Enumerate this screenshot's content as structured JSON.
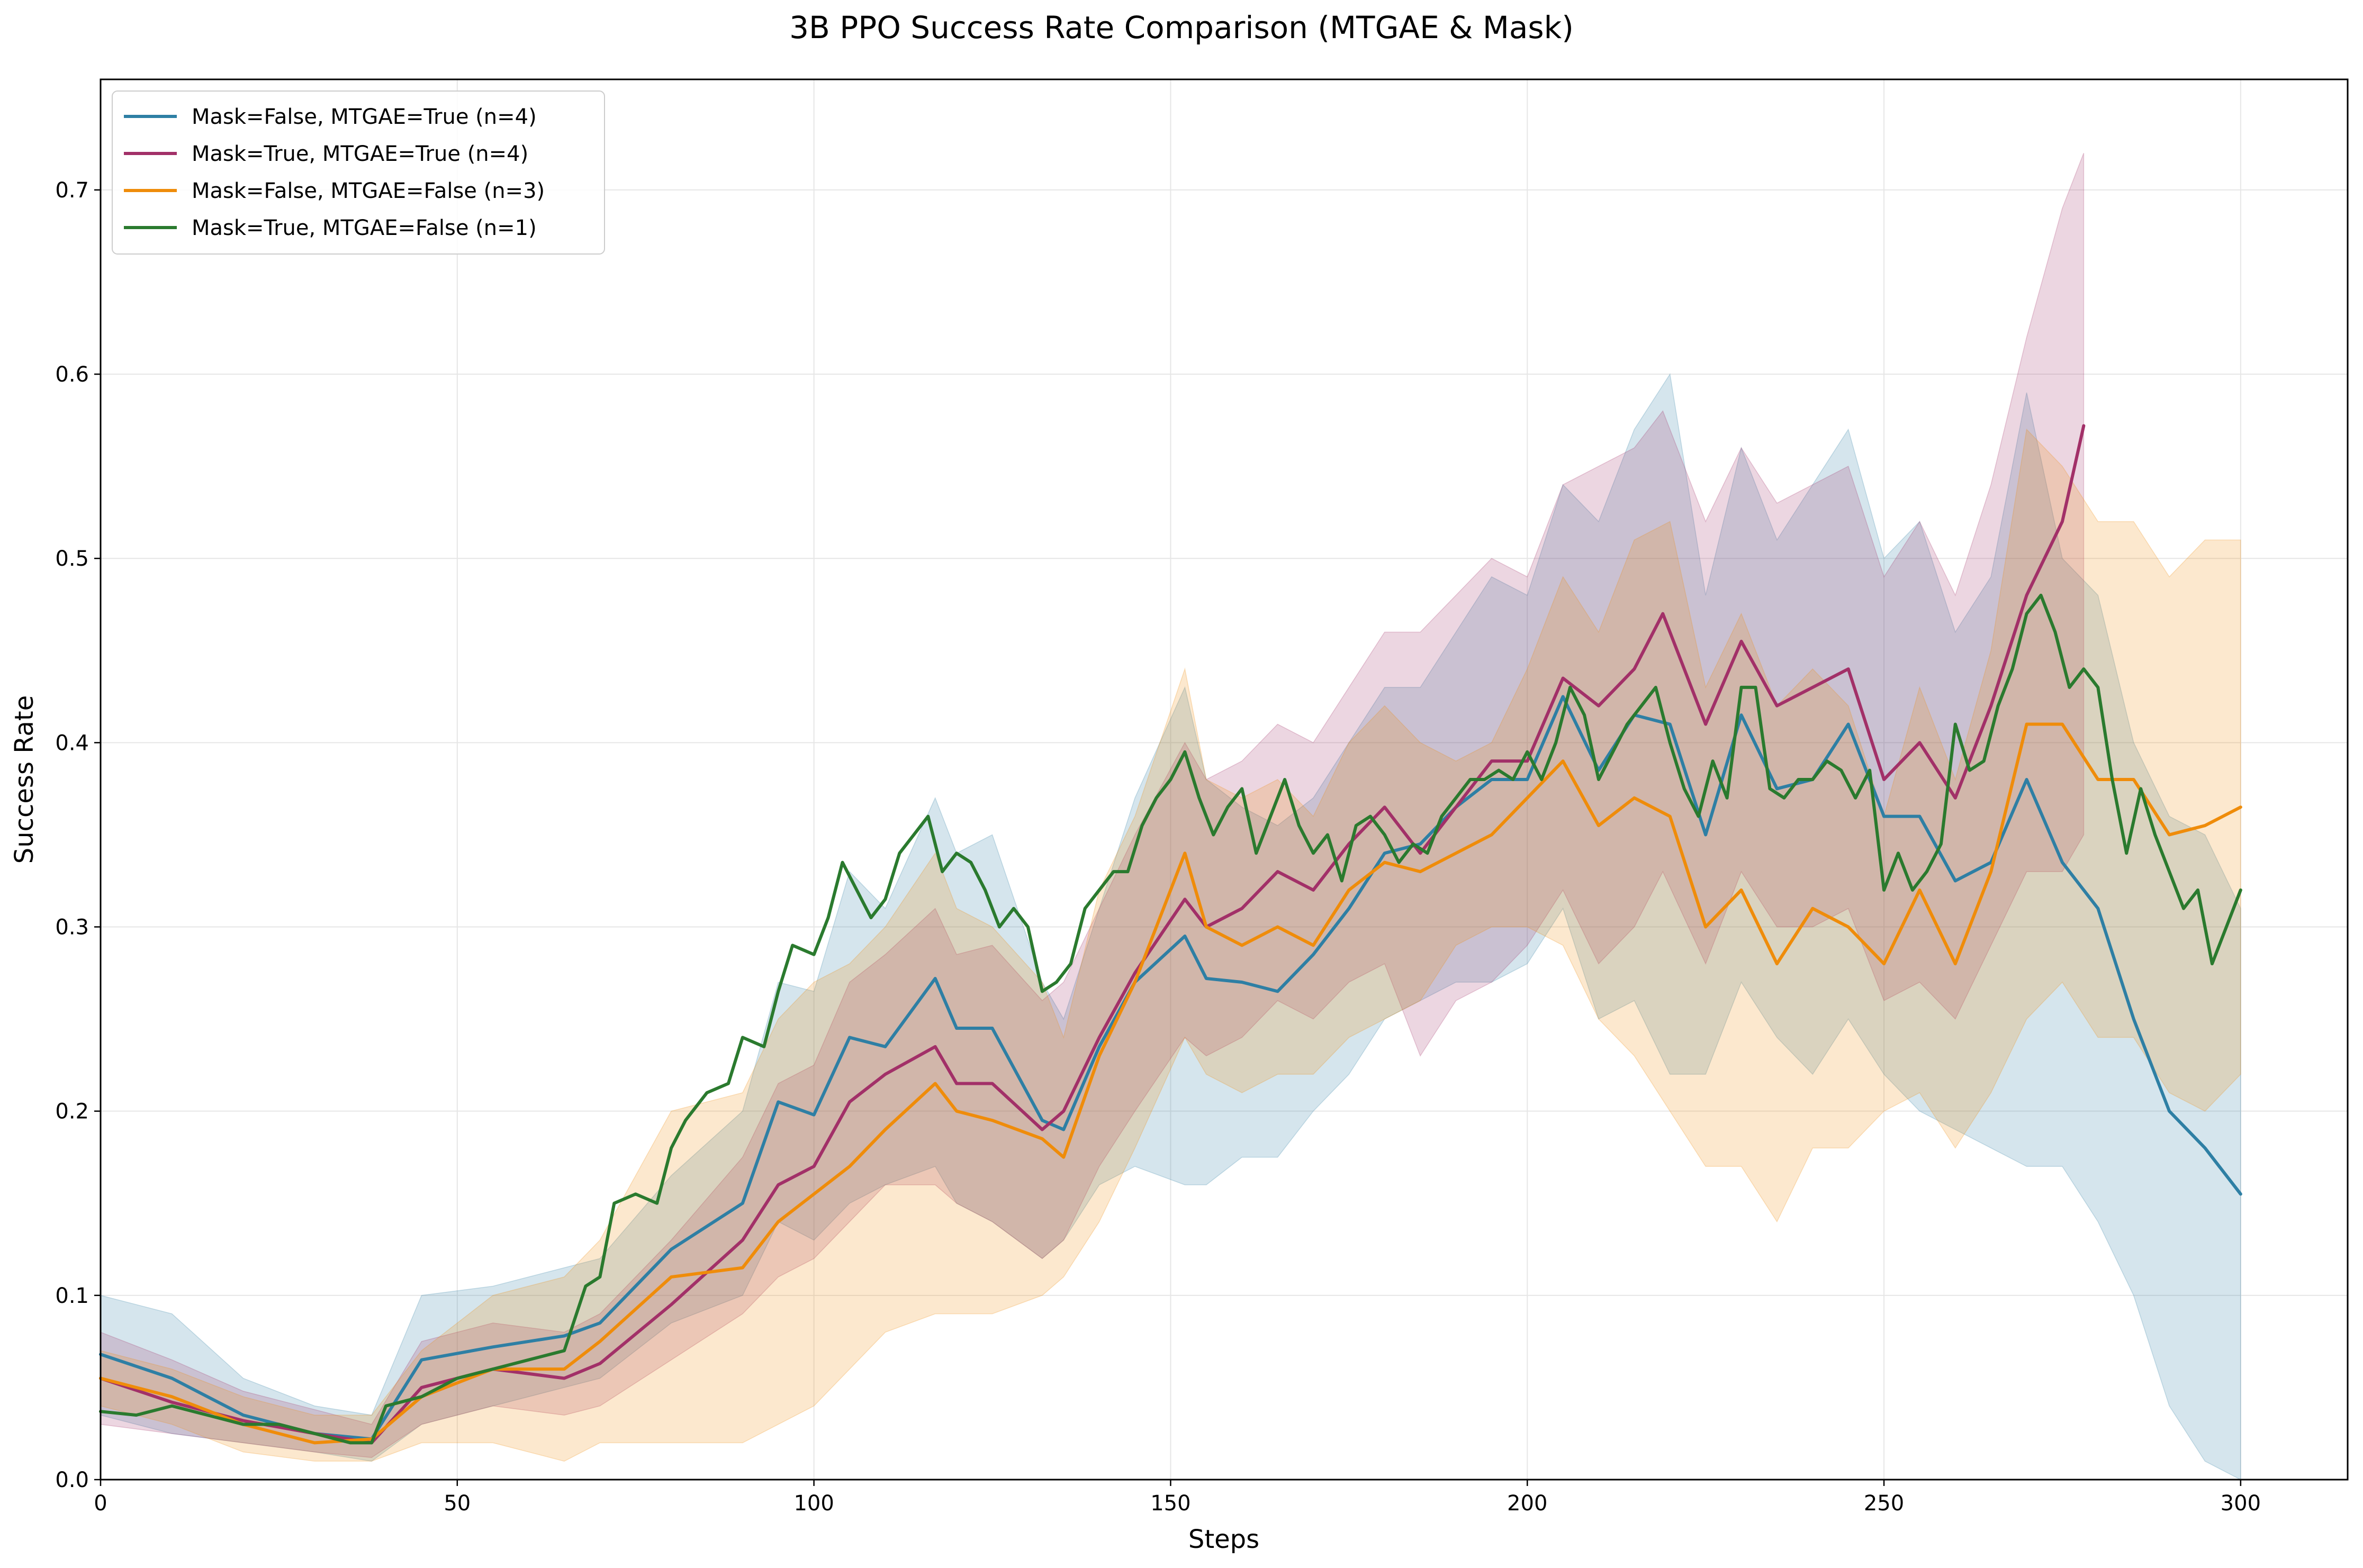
{
  "chart_data": {
    "type": "line",
    "title": "3B PPO Success Rate Comparison (MTGAE & Mask)",
    "xlabel": "Steps",
    "ylabel": "Success Rate",
    "xlim": [
      0,
      315
    ],
    "ylim": [
      0,
      0.76
    ],
    "xticks": [
      0,
      50,
      100,
      150,
      200,
      250,
      300
    ],
    "yticks": [
      0.0,
      0.1,
      0.2,
      0.3,
      0.4,
      0.5,
      0.6,
      0.7
    ],
    "grid": true,
    "legend_position": "top-left",
    "band_alpha": 0.2,
    "series": [
      {
        "name": "Mask=False, MTGAE=True (n=4)",
        "color": "#2e7fa4",
        "x": [
          0,
          10,
          20,
          30,
          38,
          45,
          55,
          65,
          70,
          80,
          90,
          95,
          100,
          105,
          110,
          117,
          120,
          125,
          132,
          135,
          140,
          145,
          152,
          155,
          160,
          165,
          170,
          175,
          180,
          185,
          190,
          195,
          200,
          205,
          210,
          215,
          220,
          225,
          230,
          235,
          240,
          245,
          250,
          255,
          260,
          265,
          270,
          275,
          280,
          285,
          290,
          295,
          300
        ],
        "y": [
          0.068,
          0.055,
          0.035,
          0.025,
          0.022,
          0.065,
          0.072,
          0.078,
          0.085,
          0.125,
          0.15,
          0.205,
          0.198,
          0.24,
          0.235,
          0.272,
          0.245,
          0.245,
          0.195,
          0.19,
          0.235,
          0.27,
          0.295,
          0.272,
          0.27,
          0.265,
          0.285,
          0.31,
          0.34,
          0.345,
          0.365,
          0.38,
          0.38,
          0.425,
          0.385,
          0.415,
          0.41,
          0.35,
          0.415,
          0.375,
          0.38,
          0.41,
          0.36,
          0.36,
          0.325,
          0.335,
          0.38,
          0.335,
          0.31,
          0.25,
          0.2,
          0.18,
          0.155
        ],
        "lower": [
          0.035,
          0.025,
          0.02,
          0.015,
          0.01,
          0.03,
          0.04,
          0.05,
          0.055,
          0.085,
          0.1,
          0.14,
          0.13,
          0.15,
          0.16,
          0.17,
          0.15,
          0.14,
          0.12,
          0.13,
          0.16,
          0.17,
          0.16,
          0.16,
          0.175,
          0.175,
          0.2,
          0.22,
          0.25,
          0.26,
          0.27,
          0.27,
          0.28,
          0.31,
          0.25,
          0.26,
          0.22,
          0.22,
          0.27,
          0.24,
          0.22,
          0.25,
          0.22,
          0.2,
          0.19,
          0.18,
          0.17,
          0.17,
          0.14,
          0.1,
          0.04,
          0.01,
          0.0
        ],
        "upper": [
          0.1,
          0.09,
          0.055,
          0.04,
          0.035,
          0.1,
          0.105,
          0.115,
          0.12,
          0.165,
          0.2,
          0.27,
          0.265,
          0.33,
          0.31,
          0.37,
          0.34,
          0.35,
          0.27,
          0.25,
          0.31,
          0.37,
          0.43,
          0.38,
          0.365,
          0.355,
          0.37,
          0.4,
          0.43,
          0.43,
          0.46,
          0.49,
          0.48,
          0.54,
          0.52,
          0.57,
          0.6,
          0.48,
          0.56,
          0.51,
          0.54,
          0.57,
          0.5,
          0.52,
          0.46,
          0.49,
          0.59,
          0.5,
          0.48,
          0.4,
          0.36,
          0.35,
          0.31
        ]
      },
      {
        "name": "Mask=True, MTGAE=True (n=4)",
        "color": "#a23068",
        "x": [
          0,
          10,
          20,
          30,
          38,
          45,
          55,
          65,
          70,
          80,
          90,
          95,
          100,
          105,
          110,
          117,
          120,
          125,
          132,
          135,
          140,
          145,
          152,
          155,
          160,
          165,
          170,
          175,
          180,
          185,
          190,
          195,
          200,
          205,
          210,
          215,
          219,
          225,
          230,
          235,
          240,
          245,
          250,
          255,
          260,
          265,
          270,
          275,
          278
        ],
        "y": [
          0.055,
          0.042,
          0.032,
          0.025,
          0.02,
          0.05,
          0.06,
          0.055,
          0.063,
          0.095,
          0.13,
          0.16,
          0.17,
          0.205,
          0.22,
          0.235,
          0.215,
          0.215,
          0.19,
          0.2,
          0.24,
          0.275,
          0.315,
          0.3,
          0.31,
          0.33,
          0.32,
          0.345,
          0.365,
          0.34,
          0.365,
          0.39,
          0.39,
          0.435,
          0.42,
          0.44,
          0.47,
          0.41,
          0.455,
          0.42,
          0.43,
          0.44,
          0.38,
          0.4,
          0.37,
          0.42,
          0.48,
          0.52,
          0.572
        ],
        "lower": [
          0.03,
          0.025,
          0.02,
          0.015,
          0.012,
          0.03,
          0.04,
          0.035,
          0.04,
          0.065,
          0.09,
          0.11,
          0.12,
          0.14,
          0.16,
          0.16,
          0.15,
          0.14,
          0.12,
          0.13,
          0.17,
          0.2,
          0.24,
          0.23,
          0.24,
          0.26,
          0.25,
          0.27,
          0.28,
          0.23,
          0.26,
          0.27,
          0.29,
          0.32,
          0.28,
          0.3,
          0.33,
          0.28,
          0.33,
          0.3,
          0.3,
          0.31,
          0.26,
          0.27,
          0.25,
          0.29,
          0.33,
          0.33,
          0.35
        ],
        "upper": [
          0.08,
          0.065,
          0.048,
          0.038,
          0.03,
          0.075,
          0.085,
          0.08,
          0.09,
          0.13,
          0.175,
          0.215,
          0.225,
          0.27,
          0.285,
          0.31,
          0.285,
          0.29,
          0.26,
          0.27,
          0.31,
          0.35,
          0.4,
          0.38,
          0.39,
          0.41,
          0.4,
          0.43,
          0.46,
          0.46,
          0.48,
          0.5,
          0.49,
          0.54,
          0.55,
          0.56,
          0.58,
          0.52,
          0.56,
          0.53,
          0.54,
          0.55,
          0.49,
          0.52,
          0.48,
          0.54,
          0.62,
          0.69,
          0.72
        ]
      },
      {
        "name": "Mask=False, MTGAE=False (n=3)",
        "color": "#ef8c0a",
        "x": [
          0,
          10,
          20,
          30,
          38,
          45,
          55,
          65,
          70,
          80,
          90,
          95,
          100,
          105,
          110,
          117,
          120,
          125,
          132,
          135,
          140,
          145,
          152,
          155,
          160,
          165,
          170,
          175,
          180,
          185,
          190,
          195,
          200,
          205,
          210,
          215,
          220,
          225,
          230,
          235,
          240,
          245,
          250,
          255,
          260,
          265,
          270,
          275,
          280,
          285,
          290,
          295,
          300
        ],
        "y": [
          0.055,
          0.045,
          0.03,
          0.02,
          0.022,
          0.045,
          0.06,
          0.06,
          0.075,
          0.11,
          0.115,
          0.14,
          0.155,
          0.17,
          0.19,
          0.215,
          0.2,
          0.195,
          0.185,
          0.175,
          0.23,
          0.27,
          0.34,
          0.3,
          0.29,
          0.3,
          0.29,
          0.32,
          0.335,
          0.33,
          0.34,
          0.35,
          0.37,
          0.39,
          0.355,
          0.37,
          0.36,
          0.3,
          0.32,
          0.28,
          0.31,
          0.3,
          0.28,
          0.32,
          0.28,
          0.33,
          0.41,
          0.41,
          0.38,
          0.38,
          0.35,
          0.355,
          0.365
        ],
        "lower": [
          0.04,
          0.03,
          0.015,
          0.01,
          0.01,
          0.02,
          0.02,
          0.01,
          0.02,
          0.02,
          0.02,
          0.03,
          0.04,
          0.06,
          0.08,
          0.09,
          0.09,
          0.09,
          0.1,
          0.11,
          0.14,
          0.18,
          0.24,
          0.22,
          0.21,
          0.22,
          0.22,
          0.24,
          0.25,
          0.26,
          0.29,
          0.3,
          0.3,
          0.29,
          0.25,
          0.23,
          0.2,
          0.17,
          0.17,
          0.14,
          0.18,
          0.18,
          0.2,
          0.21,
          0.18,
          0.21,
          0.25,
          0.27,
          0.24,
          0.24,
          0.21,
          0.2,
          0.22
        ],
        "upper": [
          0.07,
          0.06,
          0.045,
          0.035,
          0.035,
          0.07,
          0.1,
          0.11,
          0.13,
          0.2,
          0.21,
          0.25,
          0.27,
          0.28,
          0.3,
          0.34,
          0.31,
          0.3,
          0.27,
          0.24,
          0.32,
          0.36,
          0.44,
          0.38,
          0.37,
          0.38,
          0.36,
          0.4,
          0.42,
          0.4,
          0.39,
          0.4,
          0.44,
          0.49,
          0.46,
          0.51,
          0.52,
          0.43,
          0.47,
          0.42,
          0.44,
          0.42,
          0.36,
          0.43,
          0.38,
          0.45,
          0.57,
          0.55,
          0.52,
          0.52,
          0.49,
          0.51,
          0.51
        ]
      },
      {
        "name": "Mask=True, MTGAE=False (n=1)",
        "color": "#2a7a2e",
        "x": [
          0,
          5,
          10,
          15,
          20,
          25,
          30,
          35,
          38,
          40,
          45,
          50,
          55,
          60,
          65,
          68,
          70,
          72,
          75,
          78,
          80,
          82,
          85,
          88,
          90,
          93,
          95,
          97,
          100,
          102,
          104,
          106,
          108,
          110,
          112,
          114,
          116,
          118,
          120,
          122,
          124,
          126,
          128,
          130,
          132,
          134,
          136,
          138,
          140,
          142,
          144,
          146,
          148,
          150,
          152,
          154,
          156,
          158,
          160,
          162,
          164,
          166,
          168,
          170,
          172,
          174,
          176,
          178,
          180,
          182,
          184,
          186,
          188,
          190,
          192,
          194,
          196,
          198,
          200,
          202,
          204,
          206,
          208,
          210,
          212,
          214,
          216,
          218,
          220,
          222,
          224,
          226,
          228,
          230,
          232,
          234,
          236,
          238,
          240,
          242,
          244,
          246,
          248,
          250,
          252,
          254,
          256,
          258,
          260,
          262,
          264,
          266,
          268,
          270,
          272,
          274,
          276,
          278,
          280,
          282,
          284,
          286,
          288,
          290,
          292,
          294,
          296,
          298,
          300
        ],
        "y": [
          0.037,
          0.035,
          0.04,
          0.035,
          0.03,
          0.03,
          0.025,
          0.02,
          0.02,
          0.04,
          0.045,
          0.055,
          0.06,
          0.065,
          0.07,
          0.105,
          0.11,
          0.15,
          0.155,
          0.15,
          0.18,
          0.195,
          0.21,
          0.215,
          0.24,
          0.235,
          0.265,
          0.29,
          0.285,
          0.305,
          0.335,
          0.32,
          0.305,
          0.315,
          0.34,
          0.35,
          0.36,
          0.33,
          0.34,
          0.335,
          0.32,
          0.3,
          0.31,
          0.3,
          0.265,
          0.27,
          0.28,
          0.31,
          0.32,
          0.33,
          0.33,
          0.355,
          0.37,
          0.38,
          0.395,
          0.37,
          0.35,
          0.365,
          0.375,
          0.34,
          0.36,
          0.38,
          0.355,
          0.34,
          0.35,
          0.325,
          0.355,
          0.36,
          0.35,
          0.335,
          0.345,
          0.34,
          0.36,
          0.37,
          0.38,
          0.38,
          0.385,
          0.38,
          0.395,
          0.38,
          0.4,
          0.43,
          0.415,
          0.38,
          0.395,
          0.41,
          0.42,
          0.43,
          0.4,
          0.375,
          0.36,
          0.39,
          0.37,
          0.43,
          0.43,
          0.375,
          0.37,
          0.38,
          0.38,
          0.39,
          0.385,
          0.37,
          0.385,
          0.32,
          0.34,
          0.32,
          0.33,
          0.345,
          0.41,
          0.385,
          0.39,
          0.42,
          0.44,
          0.47,
          0.48,
          0.46,
          0.43,
          0.44,
          0.43,
          0.38,
          0.34,
          0.375,
          0.35,
          0.33,
          0.31,
          0.32,
          0.28,
          0.3,
          0.32
        ]
      }
    ]
  }
}
